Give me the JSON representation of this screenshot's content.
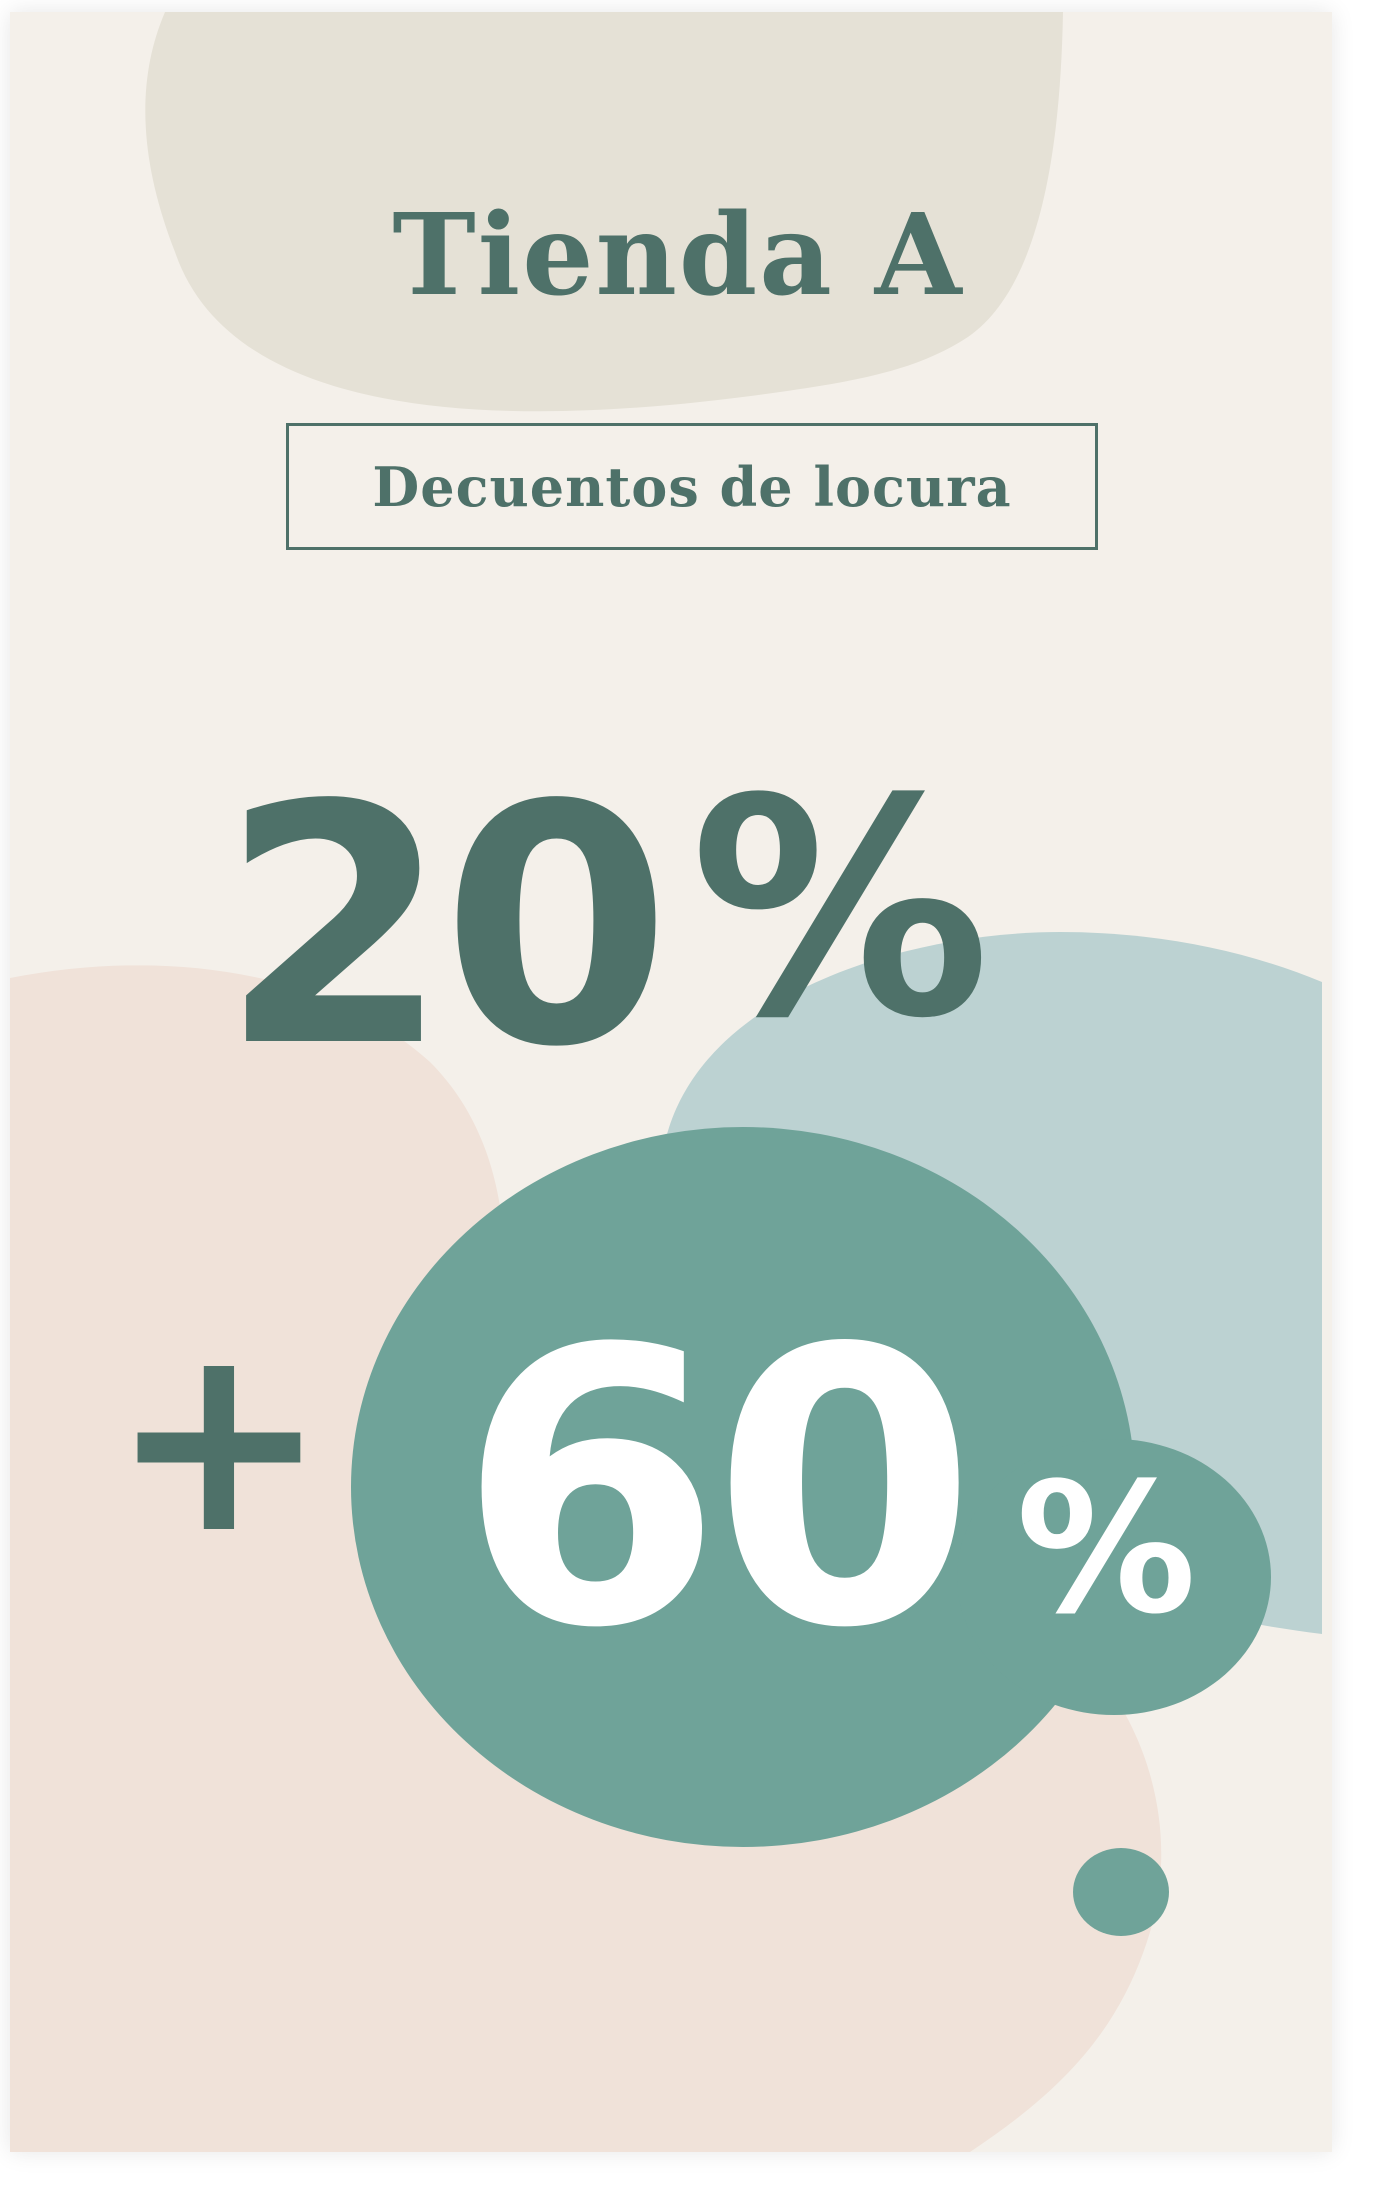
{
  "poster": {
    "title": "Tienda A",
    "subtitle": "Decuentos de locura",
    "primary_discount": {
      "value": "20",
      "symbol": "%"
    },
    "plus_sign": "+",
    "secondary_discount": {
      "value": "60",
      "symbol": "%"
    }
  },
  "colors": {
    "background": "#f4f0ea",
    "top_blob": "#e5e1d6",
    "peach_blob": "#f0e2d9",
    "light_teal_blob": "#bcd2d2",
    "teal_blob": "#6fa399",
    "dark_teal_text": "#4e7169",
    "white_text": "#ffffff"
  }
}
